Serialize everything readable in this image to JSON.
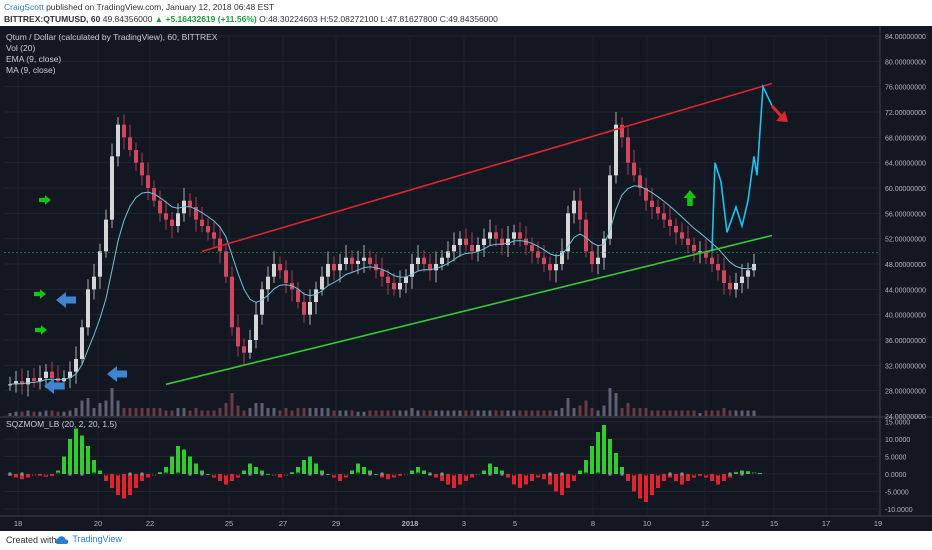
{
  "header": {
    "author": "CraigScott",
    "published": "published on TradingView.com, January 12, 2018 06:48 EST",
    "symbol": "BITTREX:QTUMUSD, 60",
    "last_price": "49.84356000",
    "change": "▲ +5.16432619 (+11.56%)",
    "open": "O:48.30224603",
    "high": "H:52.08272100",
    "low": "L:47.81627800",
    "close": "C:49.84356000"
  },
  "legend": {
    "title": "Qtum / Dollar (calculated by TradingView), 60, BITTREX",
    "vol": "Vol (20)",
    "ema": "EMA (9, close)",
    "ma": "MA (9, close)"
  },
  "oscillator_legend": "SQZMOM_LB (20, 2, 20, 1.5)",
  "footer": {
    "created_with": "Created with",
    "brand": "TradingView"
  },
  "colors": {
    "background": "#131722",
    "candle_up": "#d6d6d6",
    "candle_down": "#d0475e",
    "ema": "#6fc4d6",
    "upper_trend": "#e0242e",
    "lower_trend": "#33cc33",
    "projection": "#19c4f0",
    "hist_up": "#2ecc2e",
    "hist_down": "#e0242e",
    "last_price_tag": "#2a9d4a",
    "small_tag": "#4caf50",
    "arrow_green": "#16c216",
    "arrow_blue": "#3f84d1",
    "arrow_red": "#e0242e"
  },
  "chart_data": [
    {
      "type": "line",
      "title": "Qtum / Dollar (calculated by TradingView), 60, BITTREX",
      "x_tick_labels": [
        "18",
        "20",
        "22",
        "25",
        "27",
        "29",
        "2018",
        "3",
        "5",
        "8",
        "10",
        "12",
        "15",
        "17",
        "19"
      ],
      "y_tick_labels": [
        "24.00000000",
        "28.00000000",
        "32.00000000",
        "36.00000000",
        "40.00000000",
        "44.00000000",
        "48.00000000",
        "52.00000000",
        "56.00000000",
        "60.00000000",
        "64.00000000",
        "68.00000000",
        "72.00000000",
        "76.00000000",
        "80.00000000",
        "84.00000000"
      ],
      "ylim": [
        24,
        84
      ],
      "last_price_tag": "49.84356000",
      "small_tag": "41.30",
      "series": [
        {
          "values": [
            29,
            29.5,
            29,
            30,
            29.5,
            30,
            31,
            30,
            29.5,
            30,
            31,
            33,
            38,
            44,
            46,
            50,
            55,
            65,
            70,
            68,
            66,
            64,
            62,
            60,
            58,
            56,
            55,
            54,
            56,
            58,
            57,
            55,
            54,
            53,
            52,
            50,
            46,
            38,
            35,
            34,
            36,
            40,
            44,
            46,
            48,
            47,
            45,
            44,
            42,
            40,
            42,
            44,
            46,
            48,
            47,
            48,
            49,
            48,
            48.5,
            49,
            48,
            47,
            46,
            45,
            44,
            45,
            46,
            48,
            49,
            48,
            47,
            48,
            49,
            50,
            51,
            52,
            51,
            50,
            51,
            52,
            53,
            52,
            51,
            52,
            53,
            52,
            51,
            50,
            49,
            48,
            47,
            48,
            50,
            56,
            58,
            55,
            50,
            48,
            49,
            52,
            62,
            70,
            68,
            64,
            62,
            60,
            58,
            57,
            56,
            55,
            54,
            53,
            52,
            51,
            50,
            50,
            49,
            48,
            47,
            45,
            44,
            45,
            46,
            47,
            48
          ]
        }
      ],
      "trendlines": [
        {
          "name": "upper",
          "from": {
            "x": 32,
            "y": 50
          },
          "to": {
            "x": 127,
            "y": 76.5
          }
        },
        {
          "name": "lower",
          "from": {
            "x": 26,
            "y": 29
          },
          "to": {
            "x": 127,
            "y": 52.5
          }
        }
      ],
      "projection": [
        {
          "x": 117,
          "y": 50
        },
        {
          "x": 117.5,
          "y": 64
        },
        {
          "x": 118.5,
          "y": 61
        },
        {
          "x": 119.5,
          "y": 53
        },
        {
          "x": 121,
          "y": 57
        },
        {
          "x": 122,
          "y": 54
        },
        {
          "x": 123,
          "y": 58
        },
        {
          "x": 124,
          "y": 65
        },
        {
          "x": 124.5,
          "y": 62
        },
        {
          "x": 125.5,
          "y": 76
        },
        {
          "x": 127,
          "y": 73
        }
      ]
    },
    {
      "type": "bar",
      "title": "SQZMOM_LB (20, 2, 20, 1.5)",
      "y_tick_labels": [
        "-10.0000",
        "-5.0000",
        "0.0000",
        "5.0000",
        "10.0000",
        "15.0000"
      ],
      "ylim": [
        -12,
        16
      ],
      "values": [
        -0.5,
        -1,
        -1.5,
        -1,
        -0.5,
        -0.5,
        -0.8,
        -0.6,
        1,
        5,
        10,
        13,
        11,
        8,
        4,
        1,
        -2,
        -4,
        -6,
        -7,
        -6,
        -4,
        -2,
        -1,
        -0.5,
        0.5,
        2,
        5,
        8,
        7,
        5,
        3,
        1,
        0,
        -1,
        -2,
        -3,
        -2,
        -1,
        1,
        3,
        2,
        1,
        0,
        -0.5,
        -1,
        -0.5,
        0.5,
        2,
        4,
        5,
        3,
        1,
        0,
        -1,
        -2,
        -1,
        1,
        3,
        2,
        1,
        0,
        -1,
        -1.5,
        -1,
        -0.5,
        0,
        1,
        2,
        1,
        0,
        -1,
        -2,
        -3,
        -4,
        -3,
        -2,
        -1,
        0,
        1,
        3,
        2,
        1,
        -1,
        -3,
        -4,
        -3,
        -2,
        -1,
        -1.5,
        -3,
        -5,
        -6,
        -4,
        -2,
        1,
        4,
        8,
        12,
        14,
        10,
        6,
        2,
        -2,
        -5,
        -7,
        -8,
        -6,
        -4,
        -2,
        -1,
        -2,
        -3,
        -2,
        -1,
        -0.5,
        -1,
        -2,
        -3,
        -2,
        -1,
        0.5,
        1,
        0.8,
        0.5,
        0.3
      ]
    }
  ]
}
